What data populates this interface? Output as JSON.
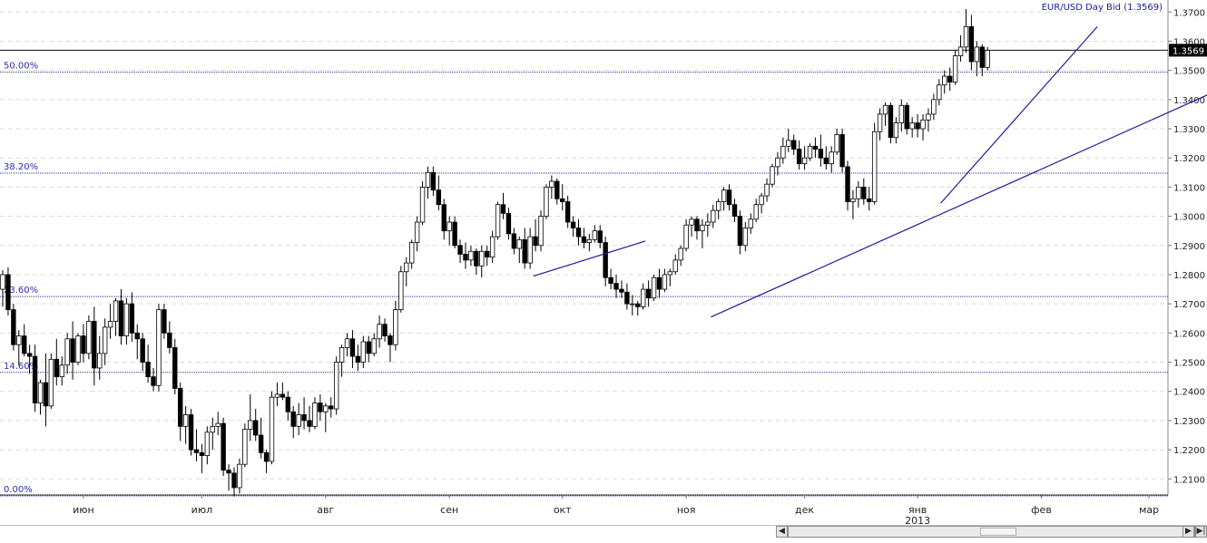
{
  "chart_data": {
    "type": "candlestick",
    "title": "EUR/USD Day Bid (1.3569)",
    "ylim": [
      1.2045,
      1.3735
    ],
    "y_ticks": [
      "1.2100",
      "1.2200",
      "1.2300",
      "1.2400",
      "1.2500",
      "1.2600",
      "1.2700",
      "1.2800",
      "1.2900",
      "1.3000",
      "1.3100",
      "1.3200",
      "1.3300",
      "1.3400",
      "1.3500",
      "1.3600",
      "1.3700"
    ],
    "current_price": {
      "label": "1.3569",
      "value": 1.3569
    },
    "x_month_labels": [
      {
        "label": "июн",
        "day": 15
      },
      {
        "label": "июл",
        "day": 37
      },
      {
        "label": "авг",
        "day": 60
      },
      {
        "label": "сен",
        "day": 83
      },
      {
        "label": "окт",
        "day": 104
      },
      {
        "label": "ноя",
        "day": 127
      },
      {
        "label": "дек",
        "day": 149
      },
      {
        "label": "янв",
        "day": 170
      },
      {
        "label": "фев",
        "day": 193
      },
      {
        "label": "мар",
        "day": 213
      }
    ],
    "year_label": {
      "label": "2013",
      "day": 170
    },
    "fibonacci_levels": [
      {
        "label": "0.00%",
        "value": 1.2042
      },
      {
        "label": "14.60%",
        "value": 1.2465
      },
      {
        "label": "23.60%",
        "value": 1.2725
      },
      {
        "label": "38.20%",
        "value": 1.3148
      },
      {
        "label": "50.00%",
        "value": 1.3494
      }
    ],
    "trend_lines": [
      {
        "x1": 98.6,
        "y1": 1.2795,
        "x2": 119.4,
        "y2": 1.2915
      },
      {
        "x1": 131.6,
        "y1": 1.2655,
        "x2": 228.6,
        "y2": 1.3455
      },
      {
        "x1": 174.3,
        "y1": 1.3045,
        "x2": 203.4,
        "y2": 1.365
      }
    ],
    "ohlc": [
      [
        1.275,
        1.2815,
        1.269,
        1.28
      ],
      [
        1.28,
        1.2825,
        1.266,
        1.268
      ],
      [
        1.268,
        1.27,
        1.254,
        1.256
      ],
      [
        1.256,
        1.261,
        1.249,
        1.259
      ],
      [
        1.259,
        1.263,
        1.252,
        1.253
      ],
      [
        1.253,
        1.256,
        1.246,
        1.252
      ],
      [
        1.252,
        1.256,
        1.233,
        1.236
      ],
      [
        1.236,
        1.244,
        1.232,
        1.243
      ],
      [
        1.243,
        1.253,
        1.228,
        1.235
      ],
      [
        1.235,
        1.253,
        1.234,
        1.251
      ],
      [
        1.251,
        1.258,
        1.242,
        1.245
      ],
      [
        1.245,
        1.252,
        1.242,
        1.249
      ],
      [
        1.249,
        1.26,
        1.246,
        1.258
      ],
      [
        1.258,
        1.264,
        1.244,
        1.25
      ],
      [
        1.25,
        1.26,
        1.249,
        1.259
      ],
      [
        1.259,
        1.263,
        1.25,
        1.253
      ],
      [
        1.253,
        1.266,
        1.251,
        1.264
      ],
      [
        1.264,
        1.269,
        1.242,
        1.248
      ],
      [
        1.248,
        1.259,
        1.244,
        1.253
      ],
      [
        1.253,
        1.265,
        1.249,
        1.262
      ],
      [
        1.262,
        1.27,
        1.258,
        1.264
      ],
      [
        1.264,
        1.272,
        1.259,
        1.271
      ],
      [
        1.271,
        1.275,
        1.256,
        1.259
      ],
      [
        1.259,
        1.272,
        1.256,
        1.27
      ],
      [
        1.27,
        1.274,
        1.257,
        1.26
      ],
      [
        1.26,
        1.263,
        1.251,
        1.258
      ],
      [
        1.258,
        1.26,
        1.247,
        1.25
      ],
      [
        1.25,
        1.256,
        1.243,
        1.245
      ],
      [
        1.245,
        1.248,
        1.24,
        1.242
      ],
      [
        1.242,
        1.27,
        1.24,
        1.268
      ],
      [
        1.268,
        1.27,
        1.258,
        1.26
      ],
      [
        1.26,
        1.264,
        1.253,
        1.255
      ],
      [
        1.255,
        1.258,
        1.239,
        1.241
      ],
      [
        1.241,
        1.243,
        1.223,
        1.228
      ],
      [
        1.228,
        1.235,
        1.222,
        1.232
      ],
      [
        1.232,
        1.234,
        1.218,
        1.22
      ],
      [
        1.22,
        1.227,
        1.216,
        1.219
      ],
      [
        1.219,
        1.222,
        1.212,
        1.218
      ],
      [
        1.218,
        1.228,
        1.215,
        1.226
      ],
      [
        1.226,
        1.231,
        1.22,
        1.228
      ],
      [
        1.228,
        1.233,
        1.225,
        1.229
      ],
      [
        1.229,
        1.231,
        1.211,
        1.213
      ],
      [
        1.213,
        1.215,
        1.206,
        1.212
      ],
      [
        1.212,
        1.214,
        1.204,
        1.207
      ],
      [
        1.207,
        1.217,
        1.205,
        1.215
      ],
      [
        1.215,
        1.229,
        1.214,
        1.227
      ],
      [
        1.227,
        1.239,
        1.223,
        1.23
      ],
      [
        1.23,
        1.234,
        1.223,
        1.225
      ],
      [
        1.225,
        1.231,
        1.217,
        1.219
      ],
      [
        1.219,
        1.22,
        1.212,
        1.216
      ],
      [
        1.216,
        1.24,
        1.215,
        1.238
      ],
      [
        1.238,
        1.243,
        1.235,
        1.239
      ],
      [
        1.239,
        1.243,
        1.237,
        1.238
      ],
      [
        1.238,
        1.24,
        1.23,
        1.233
      ],
      [
        1.233,
        1.235,
        1.224,
        1.228
      ],
      [
        1.228,
        1.236,
        1.225,
        1.232
      ],
      [
        1.232,
        1.238,
        1.227,
        1.23
      ],
      [
        1.23,
        1.235,
        1.226,
        1.228
      ],
      [
        1.228,
        1.238,
        1.227,
        1.236
      ],
      [
        1.236,
        1.239,
        1.23,
        1.233
      ],
      [
        1.233,
        1.236,
        1.226,
        1.235
      ],
      [
        1.235,
        1.238,
        1.231,
        1.234
      ],
      [
        1.234,
        1.252,
        1.232,
        1.25
      ],
      [
        1.25,
        1.256,
        1.245,
        1.255
      ],
      [
        1.255,
        1.26,
        1.252,
        1.258
      ],
      [
        1.258,
        1.261,
        1.248,
        1.252
      ],
      [
        1.252,
        1.256,
        1.247,
        1.25
      ],
      [
        1.25,
        1.259,
        1.248,
        1.257
      ],
      [
        1.257,
        1.259,
        1.25,
        1.253
      ],
      [
        1.253,
        1.26,
        1.252,
        1.258
      ],
      [
        1.258,
        1.266,
        1.255,
        1.263
      ],
      [
        1.263,
        1.265,
        1.257,
        1.259
      ],
      [
        1.259,
        1.26,
        1.25,
        1.256
      ],
      [
        1.256,
        1.271,
        1.254,
        1.268
      ],
      [
        1.268,
        1.283,
        1.267,
        1.281
      ],
      [
        1.281,
        1.286,
        1.276,
        1.284
      ],
      [
        1.284,
        1.292,
        1.282,
        1.291
      ],
      [
        1.291,
        1.3,
        1.288,
        1.298
      ],
      [
        1.298,
        1.312,
        1.297,
        1.31
      ],
      [
        1.31,
        1.317,
        1.306,
        1.315
      ],
      [
        1.315,
        1.317,
        1.307,
        1.309
      ],
      [
        1.309,
        1.314,
        1.302,
        1.304
      ],
      [
        1.304,
        1.306,
        1.292,
        1.295
      ],
      [
        1.295,
        1.3,
        1.29,
        1.298
      ],
      [
        1.298,
        1.3,
        1.289,
        1.29
      ],
      [
        1.29,
        1.292,
        1.284,
        1.287
      ],
      [
        1.287,
        1.291,
        1.282,
        1.285
      ],
      [
        1.285,
        1.29,
        1.283,
        1.288
      ],
      [
        1.288,
        1.289,
        1.28,
        1.283
      ],
      [
        1.283,
        1.29,
        1.279,
        1.288
      ],
      [
        1.288,
        1.29,
        1.283,
        1.286
      ],
      [
        1.286,
        1.295,
        1.284,
        1.293
      ],
      [
        1.293,
        1.305,
        1.292,
        1.304
      ],
      [
        1.304,
        1.308,
        1.299,
        1.301
      ],
      [
        1.301,
        1.303,
        1.292,
        1.294
      ],
      [
        1.294,
        1.296,
        1.287,
        1.289
      ],
      [
        1.289,
        1.293,
        1.284,
        1.292
      ],
      [
        1.292,
        1.296,
        1.282,
        1.284
      ],
      [
        1.284,
        1.296,
        1.282,
        1.293
      ],
      [
        1.293,
        1.299,
        1.288,
        1.29
      ],
      [
        1.29,
        1.302,
        1.288,
        1.3
      ],
      [
        1.3,
        1.311,
        1.299,
        1.31
      ],
      [
        1.31,
        1.314,
        1.306,
        1.312
      ],
      [
        1.312,
        1.313,
        1.304,
        1.306
      ],
      [
        1.306,
        1.311,
        1.302,
        1.305
      ],
      [
        1.305,
        1.307,
        1.296,
        1.298
      ],
      [
        1.298,
        1.3,
        1.293,
        1.296
      ],
      [
        1.296,
        1.299,
        1.29,
        1.293
      ],
      [
        1.293,
        1.296,
        1.289,
        1.291
      ],
      [
        1.291,
        1.294,
        1.288,
        1.292
      ],
      [
        1.292,
        1.297,
        1.291,
        1.295
      ],
      [
        1.295,
        1.297,
        1.289,
        1.291
      ],
      [
        1.291,
        1.293,
        1.276,
        1.279
      ],
      [
        1.279,
        1.282,
        1.275,
        1.277
      ],
      [
        1.277,
        1.28,
        1.272,
        1.275
      ],
      [
        1.275,
        1.278,
        1.272,
        1.274
      ],
      [
        1.274,
        1.277,
        1.268,
        1.27
      ],
      [
        1.27,
        1.273,
        1.266,
        1.27
      ],
      [
        1.27,
        1.271,
        1.266,
        1.269
      ],
      [
        1.269,
        1.277,
        1.268,
        1.275
      ],
      [
        1.275,
        1.278,
        1.269,
        1.272
      ],
      [
        1.272,
        1.28,
        1.271,
        1.279
      ],
      [
        1.279,
        1.282,
        1.272,
        1.275
      ],
      [
        1.275,
        1.282,
        1.274,
        1.28
      ],
      [
        1.28,
        1.282,
        1.276,
        1.281
      ],
      [
        1.281,
        1.287,
        1.28,
        1.285
      ],
      [
        1.285,
        1.29,
        1.283,
        1.289
      ],
      [
        1.289,
        1.299,
        1.288,
        1.297
      ],
      [
        1.297,
        1.3,
        1.293,
        1.299
      ],
      [
        1.299,
        1.3,
        1.292,
        1.295
      ],
      [
        1.295,
        1.299,
        1.289,
        1.297
      ],
      [
        1.297,
        1.301,
        1.293,
        1.298
      ],
      [
        1.298,
        1.304,
        1.296,
        1.302
      ],
      [
        1.302,
        1.306,
        1.299,
        1.305
      ],
      [
        1.305,
        1.31,
        1.302,
        1.309
      ],
      [
        1.309,
        1.311,
        1.302,
        1.304
      ],
      [
        1.304,
        1.306,
        1.298,
        1.3
      ],
      [
        1.3,
        1.302,
        1.287,
        1.29
      ],
      [
        1.29,
        1.298,
        1.288,
        1.296
      ],
      [
        1.296,
        1.301,
        1.294,
        1.299
      ],
      [
        1.299,
        1.306,
        1.298,
        1.304
      ],
      [
        1.304,
        1.308,
        1.301,
        1.307
      ],
      [
        1.307,
        1.313,
        1.305,
        1.311
      ],
      [
        1.311,
        1.318,
        1.31,
        1.317
      ],
      [
        1.317,
        1.322,
        1.314,
        1.32
      ],
      [
        1.32,
        1.327,
        1.318,
        1.324
      ],
      [
        1.324,
        1.33,
        1.322,
        1.326
      ],
      [
        1.326,
        1.328,
        1.321,
        1.323
      ],
      [
        1.323,
        1.326,
        1.316,
        1.318
      ],
      [
        1.318,
        1.324,
        1.316,
        1.32
      ],
      [
        1.32,
        1.325,
        1.319,
        1.324
      ],
      [
        1.324,
        1.327,
        1.32,
        1.323
      ],
      [
        1.323,
        1.328,
        1.317,
        1.32
      ],
      [
        1.32,
        1.324,
        1.316,
        1.318
      ],
      [
        1.318,
        1.324,
        1.315,
        1.322
      ],
      [
        1.322,
        1.33,
        1.321,
        1.328
      ],
      [
        1.328,
        1.33,
        1.315,
        1.317
      ],
      [
        1.317,
        1.319,
        1.302,
        1.305
      ],
      [
        1.305,
        1.309,
        1.299,
        1.306
      ],
      [
        1.306,
        1.312,
        1.303,
        1.31
      ],
      [
        1.31,
        1.313,
        1.304,
        1.306
      ],
      [
        1.306,
        1.31,
        1.302,
        1.305
      ],
      [
        1.305,
        1.332,
        1.304,
        1.329
      ],
      [
        1.329,
        1.337,
        1.326,
        1.335
      ],
      [
        1.335,
        1.339,
        1.331,
        1.338
      ],
      [
        1.338,
        1.339,
        1.325,
        1.327
      ],
      [
        1.327,
        1.334,
        1.325,
        1.332
      ],
      [
        1.332,
        1.34,
        1.329,
        1.338
      ],
      [
        1.338,
        1.339,
        1.328,
        1.33
      ],
      [
        1.33,
        1.334,
        1.327,
        1.332
      ],
      [
        1.332,
        1.335,
        1.327,
        1.33
      ],
      [
        1.33,
        1.335,
        1.326,
        1.333
      ],
      [
        1.333,
        1.337,
        1.329,
        1.335
      ],
      [
        1.335,
        1.342,
        1.333,
        1.34
      ],
      [
        1.34,
        1.347,
        1.338,
        1.345
      ],
      [
        1.345,
        1.35,
        1.342,
        1.348
      ],
      [
        1.348,
        1.351,
        1.343,
        1.346
      ],
      [
        1.346,
        1.357,
        1.345,
        1.355
      ],
      [
        1.355,
        1.362,
        1.353,
        1.358
      ],
      [
        1.358,
        1.371,
        1.356,
        1.365
      ],
      [
        1.365,
        1.369,
        1.35,
        1.353
      ],
      [
        1.353,
        1.36,
        1.348,
        1.358
      ],
      [
        1.358,
        1.359,
        1.348,
        1.351
      ],
      [
        1.351,
        1.358,
        1.35,
        1.3569
      ]
    ]
  }
}
